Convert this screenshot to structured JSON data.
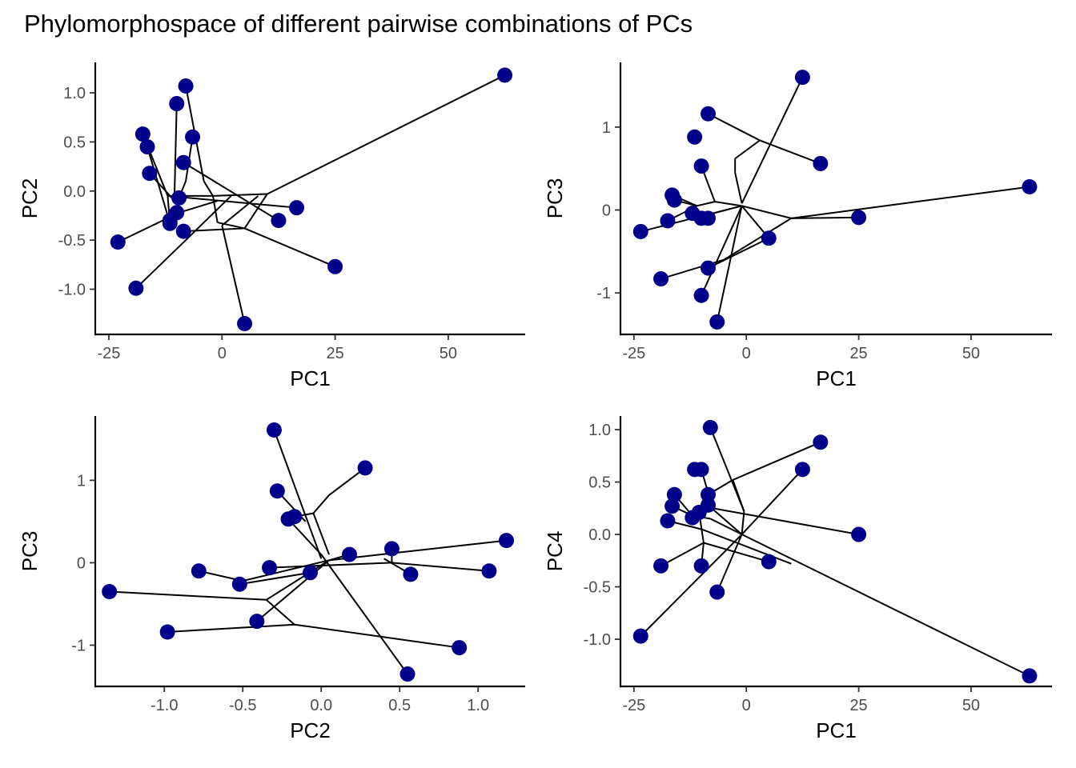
{
  "title": "Phylomorphospace of different pairwise combinations of PCs",
  "chart_data": [
    {
      "type": "scatter",
      "xlabel": "PC1",
      "ylabel": "PC2",
      "xlim": [
        -28,
        67
      ],
      "ylim": [
        -1.46,
        1.31
      ],
      "xticks": [
        -25,
        0,
        25,
        50
      ],
      "xtick_labels": [
        "-25",
        "0",
        "25",
        "50"
      ],
      "yticks": [
        -1.0,
        -0.5,
        0.0,
        0.5,
        1.0
      ],
      "ytick_labels": [
        "-1.0",
        "-0.5",
        "0.0",
        "0.5",
        "1.0"
      ],
      "point_color": "#00008B",
      "points": [
        [
          62.5,
          1.18
        ],
        [
          -8,
          1.07
        ],
        [
          -10,
          0.89
        ],
        [
          -17.5,
          0.58
        ],
        [
          -16.5,
          0.45
        ],
        [
          -6.5,
          0.55
        ],
        [
          -8.5,
          0.29
        ],
        [
          -16,
          0.18
        ],
        [
          -9.5,
          -0.07
        ],
        [
          -10,
          -0.22
        ],
        [
          -11.5,
          -0.3
        ],
        [
          -11.5,
          -0.33
        ],
        [
          -8.5,
          -0.41
        ],
        [
          -23,
          -0.52
        ],
        [
          -19,
          -0.99
        ],
        [
          12.5,
          -0.3
        ],
        [
          16.5,
          -0.17
        ],
        [
          25,
          -0.77
        ],
        [
          5,
          -1.35
        ]
      ],
      "edges": [
        [
          [
            -23,
            -0.52
          ],
          [
            -9.5,
            -0.22
          ]
        ],
        [
          [
            -9.5,
            -0.22
          ],
          [
            -1,
            -0.1
          ]
        ],
        [
          [
            -19,
            -0.99
          ],
          [
            -8,
            -0.5
          ]
        ],
        [
          [
            -8,
            -0.5
          ],
          [
            2,
            -0.05
          ]
        ],
        [
          [
            -8.5,
            -0.41
          ],
          [
            5,
            -0.38
          ]
        ],
        [
          [
            5,
            -0.38
          ],
          [
            -1,
            -0.32
          ]
        ],
        [
          [
            -1,
            -0.32
          ],
          [
            -2,
            -0.05
          ]
        ],
        [
          [
            5,
            -0.38
          ],
          [
            10,
            -0.03
          ]
        ],
        [
          [
            5,
            -1.35
          ],
          [
            0,
            -0.35
          ]
        ],
        [
          [
            0,
            -0.35
          ],
          [
            8,
            -0.05
          ]
        ],
        [
          [
            25,
            -0.77
          ],
          [
            5,
            -0.38
          ]
        ],
        [
          [
            62.5,
            1.18
          ],
          [
            10,
            -0.03
          ]
        ],
        [
          [
            10,
            -0.03
          ],
          [
            -2,
            -0.05
          ]
        ],
        [
          [
            -8,
            1.07
          ],
          [
            -4,
            0.1
          ]
        ],
        [
          [
            -4,
            0.1
          ],
          [
            -2,
            -0.05
          ]
        ],
        [
          [
            -10,
            0.89
          ],
          [
            -10.5,
            -0.05
          ]
        ],
        [
          [
            -17.5,
            0.58
          ],
          [
            -12,
            -0.05
          ]
        ],
        [
          [
            -16.5,
            0.45
          ],
          [
            -12,
            -0.25
          ]
        ],
        [
          [
            -16,
            0.18
          ],
          [
            -9.5,
            -0.15
          ]
        ],
        [
          [
            -6.5,
            0.55
          ],
          [
            -8,
            0.1
          ]
        ],
        [
          [
            -8,
            0.1
          ],
          [
            -9.5,
            -0.07
          ]
        ],
        [
          [
            -8.5,
            0.29
          ],
          [
            12.5,
            -0.3
          ]
        ],
        [
          [
            -12,
            -0.05
          ],
          [
            16.5,
            -0.17
          ]
        ],
        [
          [
            -11.5,
            -0.33
          ],
          [
            -12,
            -0.05
          ]
        ],
        [
          [
            -2,
            -0.05
          ],
          [
            -12,
            -0.05
          ]
        ]
      ]
    },
    {
      "type": "scatter",
      "xlabel": "PC1",
      "ylabel": "PC3",
      "xlim": [
        -28,
        68
      ],
      "ylim": [
        -1.5,
        1.78
      ],
      "xticks": [
        -25,
        0,
        25,
        50
      ],
      "xtick_labels": [
        "-25",
        "0",
        "25",
        "50"
      ],
      "yticks": [
        -1,
        0,
        1
      ],
      "ytick_labels": [
        "-1",
        "0",
        "1"
      ],
      "point_color": "#00008B",
      "points": [
        [
          12.5,
          1.6
        ],
        [
          -8.5,
          1.16
        ],
        [
          -11.5,
          0.88
        ],
        [
          16.5,
          0.56
        ],
        [
          -10,
          0.53
        ],
        [
          -16.5,
          0.18
        ],
        [
          -16,
          0.12
        ],
        [
          -12,
          -0.04
        ],
        [
          -10,
          -0.1
        ],
        [
          -8.5,
          -0.1
        ],
        [
          -17.5,
          -0.13
        ],
        [
          -23.5,
          -0.26
        ],
        [
          63,
          0.28
        ],
        [
          25,
          -0.09
        ],
        [
          5,
          -0.34
        ],
        [
          -8.5,
          -0.7
        ],
        [
          -19,
          -0.83
        ],
        [
          -10,
          -1.03
        ],
        [
          -6.5,
          -1.35
        ]
      ],
      "edges": [
        [
          [
            -8.5,
            1.16
          ],
          [
            3,
            0.84
          ]
        ],
        [
          [
            3,
            0.84
          ],
          [
            16.5,
            0.56
          ]
        ],
        [
          [
            3,
            0.84
          ],
          [
            -2.5,
            0.62
          ]
        ],
        [
          [
            -2.5,
            0.62
          ],
          [
            -2.5,
            0.45
          ]
        ],
        [
          [
            -2.5,
            0.45
          ],
          [
            -1,
            0.08
          ]
        ],
        [
          [
            12.5,
            1.6
          ],
          [
            -1,
            0.08
          ]
        ],
        [
          [
            -10,
            0.53
          ],
          [
            -7,
            0.1
          ]
        ],
        [
          [
            -7,
            0.1
          ],
          [
            -1,
            0.05
          ]
        ],
        [
          [
            -16.5,
            0.18
          ],
          [
            -11,
            0.05
          ]
        ],
        [
          [
            -11,
            0.05
          ],
          [
            -7,
            0.1
          ]
        ],
        [
          [
            -16,
            0.12
          ],
          [
            -11,
            0.05
          ]
        ],
        [
          [
            -12,
            -0.04
          ],
          [
            -8,
            -0.05
          ]
        ],
        [
          [
            -8,
            -0.05
          ],
          [
            -1,
            0.05
          ]
        ],
        [
          [
            -10,
            -0.1
          ],
          [
            -8,
            -0.05
          ]
        ],
        [
          [
            -17.5,
            -0.13
          ],
          [
            -11,
            0.05
          ]
        ],
        [
          [
            -23.5,
            -0.26
          ],
          [
            -1,
            0.05
          ]
        ],
        [
          [
            63,
            0.28
          ],
          [
            10,
            -0.1
          ]
        ],
        [
          [
            10,
            -0.1
          ],
          [
            -1,
            0.05
          ]
        ],
        [
          [
            25,
            -0.09
          ],
          [
            10,
            -0.1
          ]
        ],
        [
          [
            5,
            -0.34
          ],
          [
            -1,
            0.05
          ]
        ],
        [
          [
            -8.5,
            -0.7
          ],
          [
            5,
            -0.34
          ]
        ],
        [
          [
            -19,
            -0.83
          ],
          [
            -5,
            -0.6
          ]
        ],
        [
          [
            -5,
            -0.6
          ],
          [
            10,
            -0.1
          ]
        ],
        [
          [
            -10,
            -1.03
          ],
          [
            -1,
            0.05
          ]
        ],
        [
          [
            -6.5,
            -1.35
          ],
          [
            -1,
            0.05
          ]
        ]
      ]
    },
    {
      "type": "scatter",
      "xlabel": "PC2",
      "ylabel": "PC3",
      "xlim": [
        -1.44,
        1.3
      ],
      "ylim": [
        -1.5,
        1.78
      ],
      "xticks": [
        -1.0,
        -0.5,
        0.0,
        0.5,
        1.0
      ],
      "xtick_labels": [
        "-1.0",
        "-0.5",
        "0.0",
        "0.5",
        "1.0"
      ],
      "yticks": [
        -1,
        0,
        1
      ],
      "ytick_labels": [
        "-1",
        "0",
        "1"
      ],
      "point_color": "#00008B",
      "points": [
        [
          -0.3,
          1.61
        ],
        [
          0.28,
          1.15
        ],
        [
          -0.28,
          0.87
        ],
        [
          -0.21,
          0.53
        ],
        [
          -0.17,
          0.56
        ],
        [
          1.18,
          0.27
        ],
        [
          0.45,
          0.17
        ],
        [
          0.18,
          0.1
        ],
        [
          -0.78,
          -0.1
        ],
        [
          -0.33,
          -0.06
        ],
        [
          -0.52,
          -0.26
        ],
        [
          -0.07,
          -0.12
        ],
        [
          1.07,
          -0.1
        ],
        [
          0.57,
          -0.14
        ],
        [
          -1.35,
          -0.35
        ],
        [
          -0.41,
          -0.71
        ],
        [
          -0.98,
          -0.84
        ],
        [
          0.88,
          -1.03
        ],
        [
          0.55,
          -1.35
        ]
      ],
      "edges": [
        [
          [
            -0.3,
            1.61
          ],
          [
            0.0,
            0.05
          ]
        ],
        [
          [
            0.28,
            1.15
          ],
          [
            0.05,
            0.82
          ]
        ],
        [
          [
            0.05,
            0.82
          ],
          [
            -0.05,
            0.6
          ]
        ],
        [
          [
            -0.05,
            0.6
          ],
          [
            -0.17,
            0.56
          ]
        ],
        [
          [
            -0.05,
            0.6
          ],
          [
            0.05,
            0.1
          ]
        ],
        [
          [
            -0.28,
            0.87
          ],
          [
            -0.1,
            0.5
          ]
        ],
        [
          [
            -0.21,
            0.53
          ],
          [
            0.0,
            0.1
          ]
        ],
        [
          [
            0.0,
            0.1
          ],
          [
            0.55,
            -1.35
          ]
        ],
        [
          [
            1.18,
            0.27
          ],
          [
            0.05,
            0.03
          ]
        ],
        [
          [
            0.45,
            0.17
          ],
          [
            0.45,
            0.0
          ]
        ],
        [
          [
            0.45,
            0.0
          ],
          [
            -0.33,
            -0.06
          ]
        ],
        [
          [
            0.18,
            0.1
          ],
          [
            0.05,
            0.03
          ]
        ],
        [
          [
            -0.78,
            -0.1
          ],
          [
            -0.5,
            -0.22
          ]
        ],
        [
          [
            -0.5,
            -0.22
          ],
          [
            0.05,
            0.03
          ]
        ],
        [
          [
            -0.52,
            -0.26
          ],
          [
            -0.07,
            -0.12
          ]
        ],
        [
          [
            1.07,
            -0.1
          ],
          [
            0.45,
            0.0
          ]
        ],
        [
          [
            0.57,
            -0.14
          ],
          [
            0.4,
            0.05
          ]
        ],
        [
          [
            -1.35,
            -0.35
          ],
          [
            -0.35,
            -0.45
          ]
        ],
        [
          [
            -0.35,
            -0.45
          ],
          [
            0.05,
            0.03
          ]
        ],
        [
          [
            -0.35,
            -0.45
          ],
          [
            -0.17,
            -0.75
          ]
        ],
        [
          [
            -0.41,
            -0.71
          ],
          [
            0.05,
            0.03
          ]
        ],
        [
          [
            -0.98,
            -0.84
          ],
          [
            -0.17,
            -0.75
          ]
        ],
        [
          [
            -0.17,
            -0.75
          ],
          [
            0.88,
            -1.03
          ]
        ]
      ]
    },
    {
      "type": "scatter",
      "xlabel": "PC1",
      "ylabel": "PC4",
      "xlim": [
        -28,
        68
      ],
      "ylim": [
        -1.45,
        1.13
      ],
      "xticks": [
        -25,
        0,
        25,
        50
      ],
      "xtick_labels": [
        "-25",
        "0",
        "25",
        "50"
      ],
      "yticks": [
        -1.0,
        -0.5,
        0.0,
        0.5,
        1.0
      ],
      "ytick_labels": [
        "-1.0",
        "-0.5",
        "0.0",
        "0.5",
        "1.0"
      ],
      "point_color": "#00008B",
      "points": [
        [
          -8,
          1.02
        ],
        [
          16.5,
          0.88
        ],
        [
          -11.5,
          0.62
        ],
        [
          -10,
          0.62
        ],
        [
          12.5,
          0.62
        ],
        [
          -16,
          0.38
        ],
        [
          -8.5,
          0.38
        ],
        [
          -16.5,
          0.27
        ],
        [
          -8.5,
          0.28
        ],
        [
          -10.5,
          0.21
        ],
        [
          -17.5,
          0.13
        ],
        [
          -12,
          0.16
        ],
        [
          25,
          0.0
        ],
        [
          5,
          -0.26
        ],
        [
          -19,
          -0.3
        ],
        [
          -10,
          -0.3
        ],
        [
          -6.5,
          -0.55
        ],
        [
          -23.5,
          -0.97
        ],
        [
          63,
          -1.35
        ]
      ],
      "edges": [
        [
          [
            -8,
            1.02
          ],
          [
            -0.5,
            0.22
          ]
        ],
        [
          [
            -0.5,
            0.22
          ],
          [
            -1,
            0.0
          ]
        ],
        [
          [
            16.5,
            0.88
          ],
          [
            -3,
            0.52
          ]
        ],
        [
          [
            -3,
            0.52
          ],
          [
            -8.5,
            0.38
          ]
        ],
        [
          [
            -3,
            0.52
          ],
          [
            -0.5,
            0.22
          ]
        ],
        [
          [
            12.5,
            0.62
          ],
          [
            -1,
            0.0
          ]
        ],
        [
          [
            -10,
            0.62
          ],
          [
            -7.5,
            0.25
          ]
        ],
        [
          [
            -7.5,
            0.25
          ],
          [
            25,
            0.0
          ]
        ],
        [
          [
            -8.5,
            0.28
          ],
          [
            -1,
            0.0
          ]
        ],
        [
          [
            -16,
            0.38
          ],
          [
            -12,
            0.18
          ]
        ],
        [
          [
            -12,
            0.18
          ],
          [
            -8,
            0.15
          ]
        ],
        [
          [
            -16.5,
            0.27
          ],
          [
            -12,
            0.18
          ]
        ],
        [
          [
            -17.5,
            0.13
          ],
          [
            -10,
            0.05
          ]
        ],
        [
          [
            -10,
            0.05
          ],
          [
            10,
            -0.28
          ]
        ],
        [
          [
            -10.5,
            0.21
          ],
          [
            -9.5,
            -0.08
          ]
        ],
        [
          [
            -9.5,
            -0.08
          ],
          [
            -19,
            -0.3
          ]
        ],
        [
          [
            -9.5,
            -0.08
          ],
          [
            5,
            -0.26
          ]
        ],
        [
          [
            -10,
            -0.3
          ],
          [
            -9.5,
            -0.08
          ]
        ],
        [
          [
            -6.5,
            -0.55
          ],
          [
            -1,
            0.0
          ]
        ],
        [
          [
            -23.5,
            -0.97
          ],
          [
            -1,
            0.0
          ]
        ],
        [
          [
            63,
            -1.35
          ],
          [
            -1,
            0.0
          ]
        ],
        [
          [
            -1,
            0.0
          ],
          [
            -8,
            0.15
          ]
        ]
      ]
    }
  ]
}
